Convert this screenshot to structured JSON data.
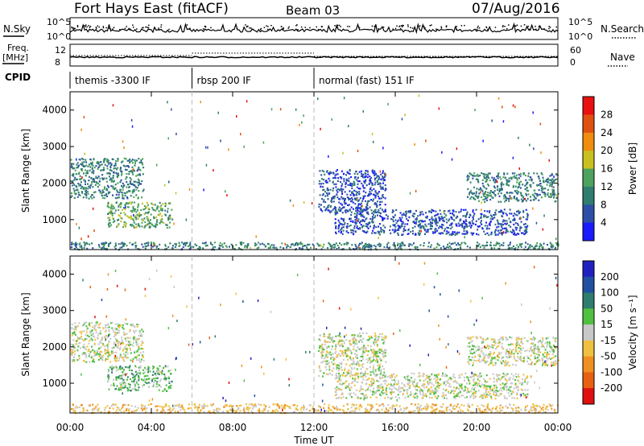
{
  "header": {
    "station": "Fort Hays East (fitACF)",
    "beam": "Beam 03",
    "date": "07/Aug/2016"
  },
  "top_panels": {
    "nsky_label": "N.Sky",
    "nsearch_label": "N.Search",
    "freq_label_1": "Freq.",
    "freq_label_2": "[MHz]",
    "nave_label": "Nave",
    "cpid_label": "CPID",
    "noise_ticks_left": [
      "10^5",
      "10^0"
    ],
    "noise_ticks_right": [
      "10^5",
      "10^0"
    ],
    "freq_ticks": [
      "12",
      "8"
    ],
    "nave_ticks": [
      "60",
      "0"
    ]
  },
  "cpid_segments": [
    {
      "start_hour": 0.0,
      "end_hour": 6.0,
      "label": "themis -3300 IF"
    },
    {
      "start_hour": 6.0,
      "end_hour": 12.0,
      "label": "rbsp 200 IF"
    },
    {
      "start_hour": 12.0,
      "end_hour": 24.0,
      "label": "normal (fast) 151 IF"
    }
  ],
  "chart_data": [
    {
      "type": "heatmap",
      "name": "power",
      "xlabel": "",
      "ylabel": "Slant Range [km]",
      "xlim": [
        0,
        24
      ],
      "ylim": [
        180,
        4500
      ],
      "y_ticks": [
        "1000",
        "2000",
        "3000",
        "4000"
      ],
      "colorbar_label": "Power [dB]",
      "colorbar_ticks": [
        "4",
        "8",
        "12",
        "16",
        "20",
        "24",
        "28"
      ],
      "colors": [
        "#1a1aff",
        "#2d4fa8",
        "#2e7d6e",
        "#4ea25e",
        "#c8c020",
        "#f08c10",
        "#e05010",
        "#e81010"
      ],
      "regions": [
        {
          "x": [
            0.0,
            3.6
          ],
          "y": [
            1600,
            2700
          ],
          "level": 2
        },
        {
          "x": [
            1.8,
            5.0
          ],
          "y": [
            800,
            1500
          ],
          "level": 3
        },
        {
          "x": [
            0.0,
            24.0
          ],
          "y": [
            200,
            400
          ],
          "level": 2
        },
        {
          "x": [
            12.2,
            15.5
          ],
          "y": [
            1200,
            2400
          ],
          "level": 1
        },
        {
          "x": [
            13.0,
            22.5
          ],
          "y": [
            600,
            1300
          ],
          "level": 1
        },
        {
          "x": [
            19.5,
            24.0
          ],
          "y": [
            1500,
            2300
          ],
          "level": 2
        }
      ]
    },
    {
      "type": "heatmap",
      "name": "velocity",
      "xlabel": "Time UT",
      "ylabel": "Slant Range [km]",
      "xlim": [
        0,
        24
      ],
      "ylim": [
        180,
        4500
      ],
      "x_ticks": [
        "00:00",
        "04:00",
        "08:00",
        "12:00",
        "16:00",
        "20:00",
        "00:00"
      ],
      "y_ticks": [
        "1000",
        "2000",
        "3000",
        "4000"
      ],
      "colorbar_label": "Velocity [m s⁻¹]",
      "colorbar_ticks": [
        "200",
        "100",
        "50",
        "15",
        "-15",
        "-50",
        "-100",
        "-200"
      ],
      "colors": [
        "#2020c0",
        "#2050a0",
        "#2e7d6e",
        "#50c040",
        "#c8c8c8",
        "#f0c040",
        "#f09020",
        "#e86010",
        "#e01010"
      ],
      "regions": [
        {
          "x": [
            0.0,
            3.6
          ],
          "y": [
            1600,
            2700
          ],
          "level": 4
        },
        {
          "x": [
            1.8,
            5.0
          ],
          "y": [
            800,
            1500
          ],
          "level": 3
        },
        {
          "x": [
            0.0,
            24.0
          ],
          "y": [
            200,
            450
          ],
          "level": 5
        },
        {
          "x": [
            12.2,
            15.5
          ],
          "y": [
            1200,
            2400
          ],
          "level": 4
        },
        {
          "x": [
            13.0,
            22.5
          ],
          "y": [
            600,
            1300
          ],
          "level": 4
        },
        {
          "x": [
            19.5,
            24.0
          ],
          "y": [
            1500,
            2300
          ],
          "level": 4
        }
      ]
    }
  ]
}
